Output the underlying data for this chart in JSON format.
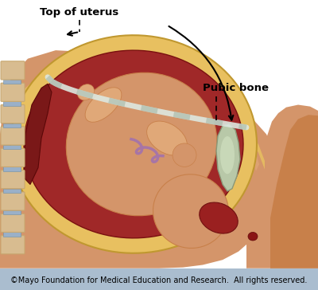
{
  "background_color": "#ffffff",
  "footer_bg_color": "#aabdcf",
  "footer_text": "©Mayo Foundation for Medical Education and Research.  All rights reserved.",
  "footer_text_color": "#000000",
  "footer_fontsize": 7.0,
  "label_top_uterus": "Top of uterus",
  "label_pubic_bone": "Pubic bone",
  "label_fontsize": 9.5,
  "label_fontweight": "bold",
  "fig_width": 4.0,
  "fig_height": 3.64,
  "dpi": 100,
  "skin_dark": "#c8804a",
  "skin_mid": "#d4956a",
  "skin_light": "#e0a878",
  "uterus_yellow": "#e8c060",
  "uterus_yellow_dark": "#c09830",
  "uterus_red": "#a02828",
  "uterus_red_dark": "#7a1010",
  "placenta_dark": "#7a1818",
  "spine_tan": "#c8a870",
  "spine_light": "#d8bc90",
  "disc_blue": "#9ab0c8",
  "pubic_gray": "#b8c8a8",
  "tape_white": "#dde8e0",
  "tape_gray": "#9ab0a0"
}
